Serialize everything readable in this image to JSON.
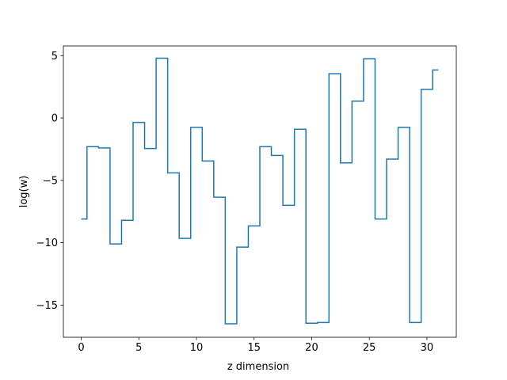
{
  "chart_data": {
    "type": "line",
    "drawstyle": "steps-mid",
    "title": "",
    "xlabel": "z dimension",
    "ylabel": "log(w)",
    "xlim": [
      -1.55,
      32.55
    ],
    "ylim": [
      -17.58,
      5.78
    ],
    "xticks": [
      0,
      5,
      10,
      15,
      20,
      25,
      30
    ],
    "yticks": [
      5,
      0,
      -5,
      -10,
      -15
    ],
    "grid": false,
    "legend": "none",
    "series": [
      {
        "color": "#1f77b4",
        "x": [
          0,
          1,
          2,
          3,
          4,
          5,
          6,
          7,
          8,
          9,
          10,
          11,
          12,
          13,
          14,
          15,
          16,
          17,
          18,
          19,
          20,
          21,
          22,
          23,
          24,
          25,
          26,
          27,
          28,
          29,
          30,
          31
        ],
        "values": [
          -8.1,
          -2.3,
          -2.4,
          -10.1,
          -8.2,
          -0.35,
          -2.45,
          4.8,
          -4.4,
          -9.65,
          -0.75,
          -3.45,
          -6.35,
          -16.5,
          -10.35,
          -8.65,
          -2.3,
          -3.0,
          -7.0,
          -0.9,
          -16.45,
          -16.4,
          3.55,
          -3.6,
          1.35,
          4.75,
          -8.1,
          -3.3,
          -0.75,
          -16.4,
          2.3,
          3.85
        ]
      }
    ]
  }
}
